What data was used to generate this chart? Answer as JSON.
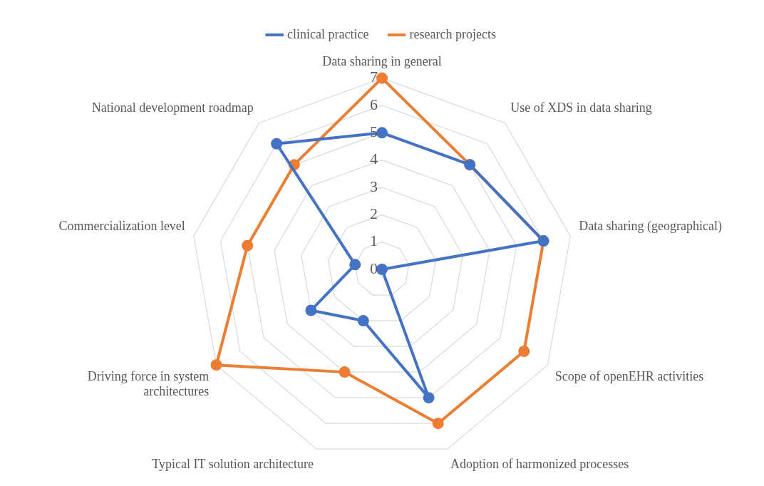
{
  "chart_data": {
    "type": "radar",
    "categories": [
      "Data sharing in general",
      "Use of XDS in data sharing",
      "Data sharing (geographical)",
      "Scope of openEHR activities",
      "Adoption of harmonized processes",
      "Typical IT solution architecture",
      "Driving force in system architectures",
      "Commercialization level",
      "National development roadmap"
    ],
    "series": [
      {
        "name": "clinical practice",
        "color": "#4472c4",
        "values": [
          5,
          5,
          6,
          0,
          5,
          2,
          3,
          1,
          6
        ]
      },
      {
        "name": "research projects",
        "color": "#ed7d31",
        "values": [
          7,
          5,
          6,
          6,
          6,
          4,
          7,
          5,
          5
        ]
      }
    ],
    "ylim": [
      0,
      7
    ],
    "yticks": [
      0,
      1,
      2,
      3,
      4,
      5,
      6,
      7
    ],
    "grid": true,
    "legend": "top",
    "marker": "circle",
    "line_style": "solid"
  }
}
